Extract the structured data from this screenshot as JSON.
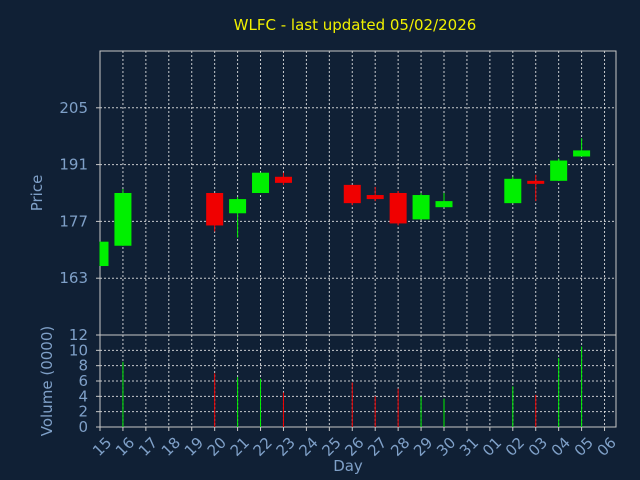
{
  "chart_data": {
    "type": "candlestick",
    "title": "WLFC - last updated 05/02/2026",
    "xlabel": "Day",
    "price_ylabel": "Price",
    "volume_ylabel": "Volume (0000)",
    "x_ticks": [
      "15",
      "16",
      "17",
      "18",
      "19",
      "20",
      "21",
      "22",
      "23",
      "24",
      "25",
      "26",
      "27",
      "28",
      "29",
      "30",
      "31",
      "01",
      "02",
      "03",
      "04",
      "05",
      "06"
    ],
    "price_ticks": [
      163,
      177,
      191,
      205
    ],
    "price_ylim": [
      149,
      219
    ],
    "volume_ticks": [
      0,
      2,
      4,
      6,
      8,
      10,
      12
    ],
    "volume_ylim": [
      0,
      12
    ],
    "colors": {
      "up": "#00f000",
      "down": "#f00000",
      "background": "#102035",
      "title": "#f0f000",
      "label": "#7fa0c8"
    },
    "grid": true,
    "candles": [
      {
        "day": "15",
        "open": 166.0,
        "high": 172.0,
        "low": 166.0,
        "close": 172.0,
        "volume": 0
      },
      {
        "day": "16",
        "open": 171.0,
        "high": 185.0,
        "low": 171.0,
        "close": 184.0,
        "volume": 8.5
      },
      {
        "day": "20",
        "open": 184.0,
        "high": 184.0,
        "low": 174.5,
        "close": 176.0,
        "volume": 7.0
      },
      {
        "day": "21",
        "open": 179.0,
        "high": 183.0,
        "low": 173.0,
        "close": 182.5,
        "volume": 6.5
      },
      {
        "day": "22",
        "open": 184.0,
        "high": 189.0,
        "low": 184.0,
        "close": 189.0,
        "volume": 6.3
      },
      {
        "day": "23",
        "open": 188.0,
        "high": 189.0,
        "low": 186.0,
        "close": 186.5,
        "volume": 4.5
      },
      {
        "day": "26",
        "open": 186.0,
        "high": 186.0,
        "low": 181.0,
        "close": 181.5,
        "volume": 5.8
      },
      {
        "day": "27",
        "open": 183.5,
        "high": 185.5,
        "low": 182.0,
        "close": 182.5,
        "volume": 4.0
      },
      {
        "day": "28",
        "open": 184.0,
        "high": 184.5,
        "low": 176.0,
        "close": 176.5,
        "volume": 5.0
      },
      {
        "day": "29",
        "open": 177.5,
        "high": 184.0,
        "low": 177.5,
        "close": 183.5,
        "volume": 4.0
      },
      {
        "day": "30",
        "open": 180.5,
        "high": 184.0,
        "low": 180.5,
        "close": 182.0,
        "volume": 3.7
      },
      {
        "day": "02",
        "open": 181.5,
        "high": 188.0,
        "low": 181.5,
        "close": 187.5,
        "volume": 5.3
      },
      {
        "day": "03",
        "open": 187.0,
        "high": 188.5,
        "low": 182.0,
        "close": 186.5,
        "volume": 4.2
      },
      {
        "day": "04",
        "open": 187.0,
        "high": 192.5,
        "low": 187.0,
        "close": 192.0,
        "volume": 9.0
      },
      {
        "day": "05",
        "open": 193.0,
        "high": 197.5,
        "low": 193.0,
        "close": 194.5,
        "volume": 10.5
      }
    ]
  }
}
